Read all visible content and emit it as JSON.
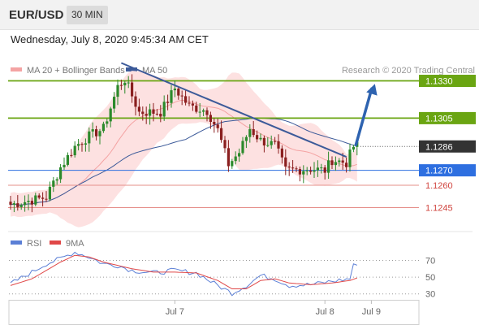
{
  "header": {
    "symbol": "EUR/USD",
    "timeframe": "30 MIN"
  },
  "timestamp": "Wednesday, July 8, 2020 9:45:34 AM CET",
  "legend": {
    "ma20_bb": "MA 20 + Bollinger Bands",
    "ma50": "MA 50",
    "rsi": "RSI",
    "rsi_ma": "9MA"
  },
  "copyright": "Research © 2020 Trading Central",
  "colors": {
    "green_level": "#6aa512",
    "blue_level": "#2e6fe0",
    "red_level": "#d0443e",
    "current_price_box": "#333333",
    "trendline": "#3c5a99",
    "ma50": "#3c5a99",
    "ma20": "#f4a3a3",
    "bollinger_fill": "#fde1e1",
    "candle_up": "#2c8a2c",
    "candle_down": "#8a1f1f",
    "rsi": "#5b7fd6",
    "rsi_ma": "#e04848"
  },
  "chart_data": [
    {
      "type": "candlestick",
      "price_range": [
        1.1236,
        1.1345
      ],
      "price_levels": [
        {
          "value": 1.133,
          "label": "1.1330",
          "kind": "resistance"
        },
        {
          "value": 1.1305,
          "label": "1.1305",
          "kind": "resistance"
        },
        {
          "value": 1.1286,
          "label": "1.1286",
          "kind": "current"
        },
        {
          "value": 1.127,
          "label": "1.1270",
          "kind": "pivot"
        },
        {
          "value": 1.126,
          "label": "1.1260",
          "kind": "support"
        },
        {
          "value": 1.1245,
          "label": "1.1245",
          "kind": "support"
        }
      ],
      "x_tick_labels": [
        {
          "label": "Jul 7",
          "bar": 46
        },
        {
          "label": "Jul 8",
          "bar": 88
        },
        {
          "label": "Jul 9",
          "bar": 101
        }
      ],
      "bars": 104,
      "close_path": [
        [
          0,
          1.1247
        ],
        [
          10,
          1.1252
        ],
        [
          14,
          1.1272
        ],
        [
          18,
          1.1286
        ],
        [
          22,
          1.1293
        ],
        [
          26,
          1.1298
        ],
        [
          30,
          1.1326
        ],
        [
          32,
          1.1331
        ],
        [
          36,
          1.1309
        ],
        [
          42,
          1.1309
        ],
        [
          46,
          1.1325
        ],
        [
          50,
          1.1313
        ],
        [
          55,
          1.131
        ],
        [
          58,
          1.1297
        ],
        [
          61,
          1.1274
        ],
        [
          64,
          1.1282
        ],
        [
          67,
          1.1298
        ],
        [
          70,
          1.129
        ],
        [
          74,
          1.1287
        ],
        [
          77,
          1.127
        ],
        [
          84,
          1.1271
        ],
        [
          88,
          1.127
        ],
        [
          90,
          1.1277
        ],
        [
          94,
          1.1275
        ],
        [
          96,
          1.1286
        ],
        [
          97,
          1.1289
        ]
      ],
      "trendline": {
        "from": [
          31,
          1.1342
        ],
        "to": [
          94,
          1.1279
        ]
      },
      "forecast_arrow": {
        "from": [
          96,
          1.1286
        ],
        "to": [
          102,
          1.1328
        ]
      },
      "series": [
        {
          "name": "MA 20 + Bollinger Bands"
        },
        {
          "name": "MA 50"
        }
      ]
    },
    {
      "type": "line",
      "y_range": [
        20,
        85
      ],
      "y_ticks": [
        70,
        50,
        30
      ],
      "rsi_path": [
        [
          0,
          42
        ],
        [
          6,
          56
        ],
        [
          10,
          66
        ],
        [
          14,
          72
        ],
        [
          18,
          80
        ],
        [
          22,
          74
        ],
        [
          26,
          66
        ],
        [
          30,
          64
        ],
        [
          34,
          58
        ],
        [
          40,
          55
        ],
        [
          46,
          58
        ],
        [
          52,
          55
        ],
        [
          58,
          40
        ],
        [
          62,
          31
        ],
        [
          66,
          40
        ],
        [
          70,
          52
        ],
        [
          74,
          48
        ],
        [
          78,
          40
        ],
        [
          84,
          41
        ],
        [
          90,
          45
        ],
        [
          95,
          48
        ],
        [
          96,
          66
        ],
        [
          97,
          62
        ]
      ],
      "rsi_ma_path": [
        [
          0,
          40
        ],
        [
          6,
          48
        ],
        [
          10,
          58
        ],
        [
          14,
          68
        ],
        [
          18,
          76
        ],
        [
          22,
          74
        ],
        [
          26,
          68
        ],
        [
          30,
          64
        ],
        [
          34,
          60
        ],
        [
          40,
          56
        ],
        [
          46,
          56
        ],
        [
          52,
          55
        ],
        [
          58,
          46
        ],
        [
          62,
          36
        ],
        [
          66,
          36
        ],
        [
          70,
          46
        ],
        [
          74,
          48
        ],
        [
          78,
          43
        ],
        [
          84,
          41
        ],
        [
          90,
          43
        ],
        [
          95,
          46
        ],
        [
          97,
          49
        ]
      ],
      "series": [
        {
          "name": "RSI"
        },
        {
          "name": "9MA"
        }
      ]
    }
  ]
}
